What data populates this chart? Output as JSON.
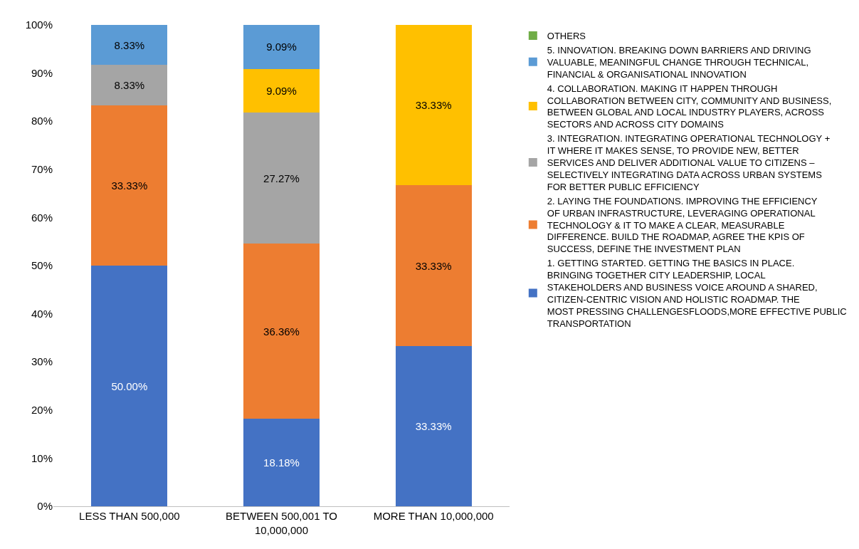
{
  "chart_data": {
    "type": "bar",
    "stacked": true,
    "categories": [
      "LESS THAN 500,000",
      "BETWEEN 500,001 TO 10,000,000",
      "MORE THAN 10,000,000"
    ],
    "series": [
      {
        "name": "1. GETTING STARTED. GETTING THE BASICS IN PLACE. BRINGING TOGETHER CITY LEADERSHIP, LOCAL STAKEHOLDERS AND BUSINESS VOICE AROUND A SHARED, CITIZEN-CENTRIC VISION AND HOLISTIC ROADMAP. THE MOST PRESSING CHALLENGESFLOODS,MORE EFFECTIVE PUBLIC TRANSPORTATION",
        "color": "#4472c4",
        "values": [
          50.0,
          18.18,
          33.33
        ],
        "value_labels": [
          "50.00%",
          "18.18%",
          "33.33%"
        ]
      },
      {
        "name": "2. LAYING THE FOUNDATIONS. IMPROVING THE EFFICIENCY OF URBAN INFRASTRUCTURE, LEVERAGING OPERATIONAL TECHNOLOGY & IT TO MAKE A CLEAR, MEASURABLE DIFFERENCE. BUILD THE ROADMAP, AGREE THE KPIS OF SUCCESS, DEFINE THE INVESTMENT PLAN",
        "color": "#ed7d31",
        "values": [
          33.33,
          36.36,
          33.33
        ],
        "value_labels": [
          "33.33%",
          "36.36%",
          "33.33%"
        ]
      },
      {
        "name": "3. INTEGRATION. INTEGRATING OPERATIONAL TECHNOLOGY + IT WHERE IT MAKES SENSE, TO PROVIDE NEW, BETTER SERVICES AND DELIVER ADDITIONAL VALUE TO CITIZENS – SELECTIVELY INTEGRATING DATA ACROSS URBAN SYSTEMS FOR BETTER PUBLIC EFFICIENCY",
        "color": "#a5a5a5",
        "values": [
          8.33,
          27.27,
          null
        ],
        "value_labels": [
          "8.33%",
          "27.27%",
          null
        ]
      },
      {
        "name": "4. COLLABORATION. MAKING IT HAPPEN THROUGH COLLABORATION BETWEEN CITY, COMMUNITY AND BUSINESS, BETWEEN GLOBAL AND LOCAL INDUSTRY PLAYERS, ACROSS SECTORS AND ACROSS CITY DOMAINS",
        "color": "#ffc000",
        "values": [
          null,
          9.09,
          33.33
        ],
        "value_labels": [
          null,
          "9.09%",
          "33.33%"
        ]
      },
      {
        "name": "5. INNOVATION. BREAKING DOWN BARRIERS AND DRIVING VALUABLE, MEANINGFUL CHANGE THROUGH TECHNICAL, FINANCIAL & ORGANISATIONAL INNOVATION",
        "color": "#5b9bd5",
        "values": [
          8.33,
          9.09,
          null
        ],
        "value_labels": [
          "8.33%",
          "9.09%",
          null
        ]
      },
      {
        "name": "OTHERS",
        "color": "#70ad47",
        "values": [
          null,
          null,
          null
        ]
      }
    ],
    "ylim": [
      0,
      100
    ],
    "yticks": [
      {
        "value": 0,
        "label": "0%"
      },
      {
        "value": 10,
        "label": "10%"
      },
      {
        "value": 20,
        "label": "20%"
      },
      {
        "value": 30,
        "label": "30%"
      },
      {
        "value": 40,
        "label": "40%"
      },
      {
        "value": 50,
        "label": "50%"
      },
      {
        "value": 60,
        "label": "60%"
      },
      {
        "value": 70,
        "label": "70%"
      },
      {
        "value": 80,
        "label": "80%"
      },
      {
        "value": 90,
        "label": "90%"
      },
      {
        "value": 100,
        "label": "100%"
      }
    ],
    "grid": false,
    "legend": "right"
  }
}
